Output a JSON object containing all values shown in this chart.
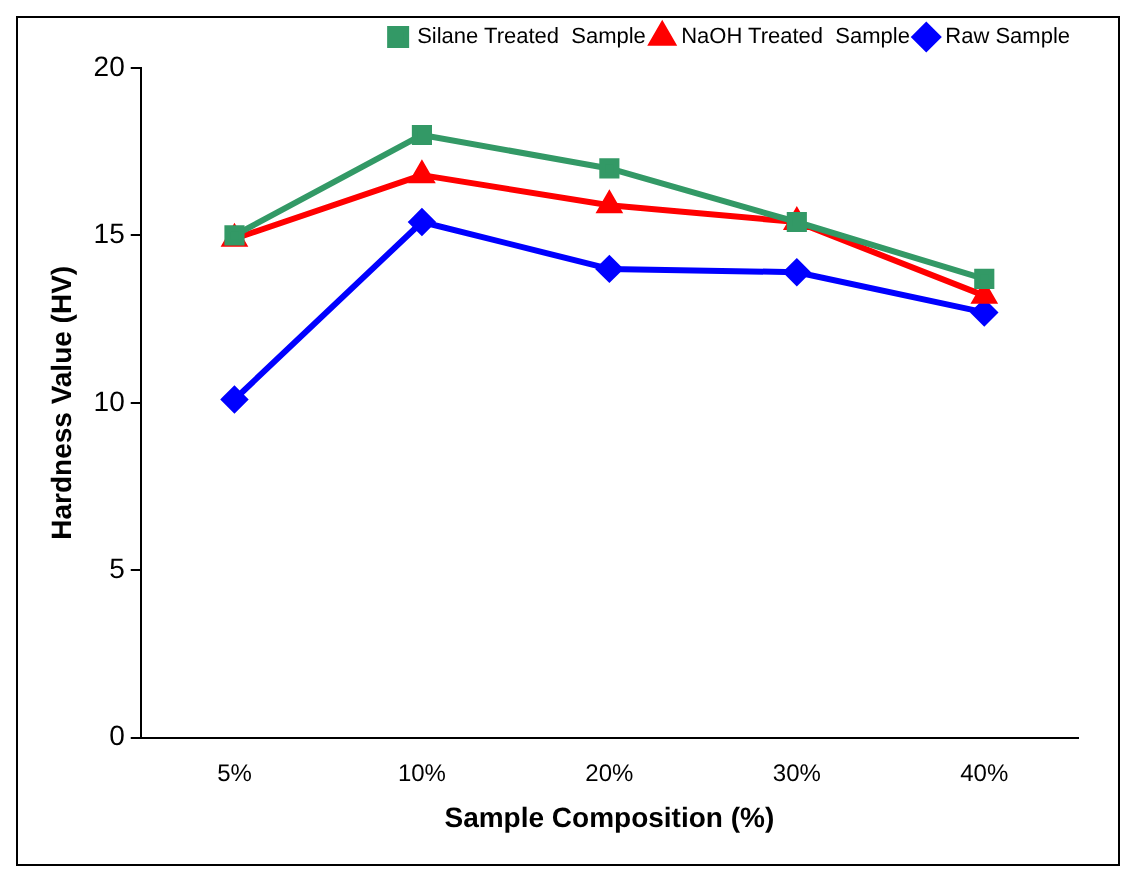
{
  "chart_data": {
    "type": "line",
    "xlabel": "Sample Composition (%)",
    "ylabel": "Hardness Value (HV)",
    "categories": [
      "5%",
      "10%",
      "20%",
      "30%",
      "40%"
    ],
    "series": [
      {
        "name": "Raw Sample",
        "color": "#0000ff",
        "marker": "diamond",
        "values": [
          10.1,
          15.4,
          14.0,
          13.9,
          12.7
        ]
      },
      {
        "name": "NaOH Treated  Sample",
        "color": "#ff0000",
        "marker": "triangle",
        "values": [
          14.9,
          16.8,
          15.9,
          15.4,
          13.2
        ]
      },
      {
        "name": "Silane Treated  Sample",
        "color": "#339966",
        "marker": "square",
        "values": [
          15.0,
          18.0,
          17.0,
          15.4,
          13.7
        ]
      }
    ],
    "ylim": [
      0,
      20
    ],
    "yticks": [
      0,
      5,
      10,
      15,
      20
    ],
    "grid": false,
    "legend": "top right",
    "line_style": "solid"
  }
}
